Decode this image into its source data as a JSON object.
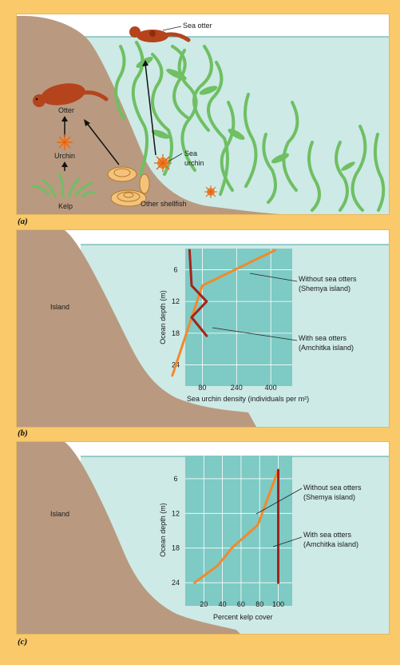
{
  "panel_a": {
    "letter": "(a)",
    "sea_otter": "Sea otter",
    "otter": "Otter",
    "urchin": "Urchin",
    "kelp": "Kelp",
    "sea_urchin_line1": "Sea",
    "sea_urchin_line2": "urchin",
    "other_shellfish": "Other shellfish"
  },
  "panel_b": {
    "letter": "(b)",
    "island": "Island",
    "annotation_without_line1": "Without sea otters",
    "annotation_without_line2": "(Shemya island)",
    "annotation_with_line1": "With sea otters",
    "annotation_with_line2": "(Amchitka island)"
  },
  "panel_c": {
    "letter": "(c)",
    "island": "Island",
    "annotation_without_line1": "Without sea otters",
    "annotation_without_line2": "(Shemya island)",
    "annotation_with_line1": "With sea otters",
    "annotation_with_line2": "(Amchitka island)"
  },
  "colors": {
    "background": "#f9c96a",
    "water": "#cdeae6",
    "land": "#b99a80",
    "chart_bg": "#7ecac4",
    "without_otters": "#f08a2c",
    "with_otters": "#a3231c",
    "kelp": "#6fbf63"
  },
  "chart_data": [
    {
      "type": "line",
      "xlabel": "Sea urchin density (individuals per m²)",
      "ylabel": "Ocean depth (m)",
      "xticks": [
        80,
        240,
        400
      ],
      "yticks": [
        6,
        12,
        18,
        24
      ],
      "xlim": [
        0,
        500
      ],
      "ylim": [
        2,
        28
      ],
      "y_inverted": true,
      "series": [
        {
          "name": "Without sea otters",
          "points": [
            [
              420,
              2.3
            ],
            [
              80,
              9
            ],
            [
              -60,
              26
            ]
          ]
        },
        {
          "name": "With sea otters",
          "points": [
            [
              20,
              2.3
            ],
            [
              30,
              9
            ],
            [
              100,
              12
            ],
            [
              30,
              15
            ],
            [
              100,
              18.5
            ]
          ]
        }
      ]
    },
    {
      "type": "line",
      "xlabel": "Percent kelp cover",
      "ylabel": "Ocean depth (m)",
      "xticks": [
        20,
        40,
        60,
        80,
        100
      ],
      "yticks": [
        6,
        12,
        18,
        24
      ],
      "xlim": [
        0,
        115
      ],
      "ylim": [
        2,
        28
      ],
      "y_inverted": true,
      "series": [
        {
          "name": "Without sea otters",
          "points": [
            [
              100,
              4.5
            ],
            [
              78,
              14
            ],
            [
              50,
              18
            ],
            [
              35,
              21
            ],
            [
              10,
              24
            ]
          ]
        },
        {
          "name": "With sea otters",
          "points": [
            [
              100,
              4.5
            ],
            [
              100,
              24
            ]
          ]
        }
      ]
    }
  ]
}
